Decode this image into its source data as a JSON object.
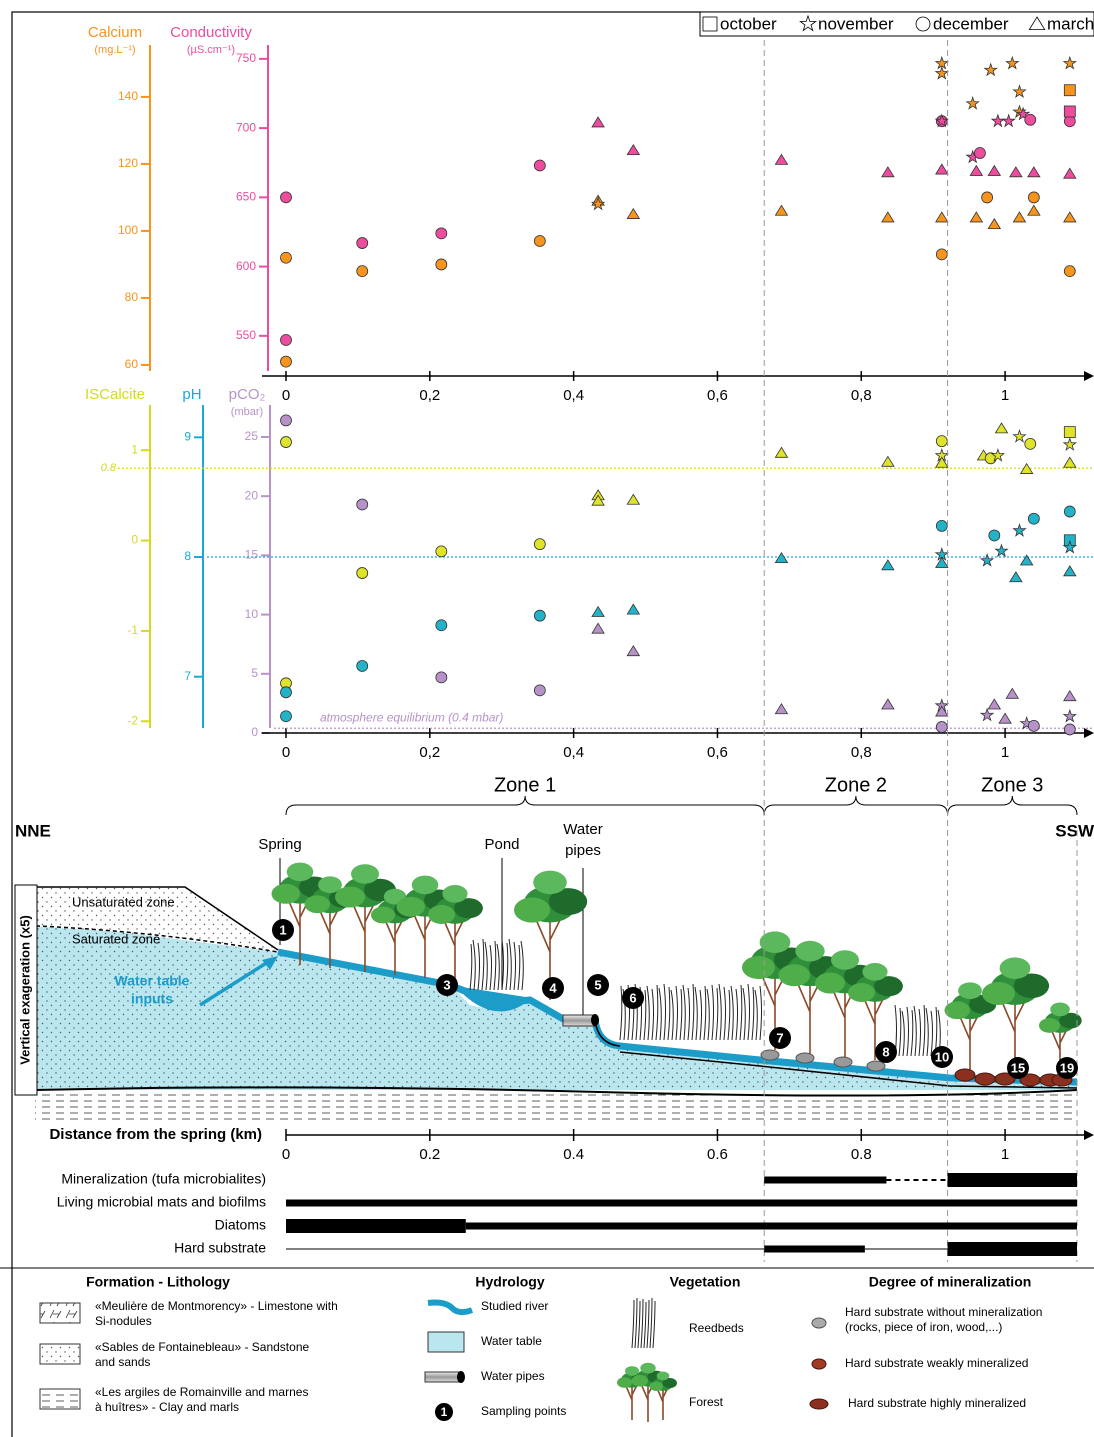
{
  "legend": {
    "months": [
      "october",
      "november",
      "december",
      "march"
    ]
  },
  "chart_data": [
    {
      "type": "scatter",
      "xlim": [
        0,
        1.1
      ],
      "xticks": [
        0,
        {
          "value": 0.2,
          "label": "0,2"
        },
        {
          "value": 0.4,
          "label": "0,4"
        },
        {
          "value": 0.6,
          "label": "0,6"
        },
        {
          "value": 0.8,
          "label": "0,8"
        },
        1
      ],
      "axes": [
        {
          "title": "Calcium",
          "unit": "(mg.L⁻¹)",
          "color": "#f7941d",
          "lim": [
            56.7,
            155.5
          ],
          "ticks": [
            60,
            80,
            100,
            120,
            140
          ]
        },
        {
          "title": "Conductivity",
          "unit": "(µS.cm⁻¹)",
          "color": "#ee4d9f",
          "lim": [
            521,
            760
          ],
          "ticks": [
            550,
            600,
            650,
            700,
            750
          ]
        }
      ],
      "series": [
        {
          "axis": 0,
          "color": "#f7941d",
          "x": [
            0,
            0,
            0.106,
            0.216,
            0.353,
            0.434,
            0.434,
            0.483,
            0.689,
            0.837,
            0.912,
            0.912,
            0.912,
            0.912,
            0.955,
            0.98,
            1.01,
            1.02,
            1.02,
            0.975,
            1.04,
            0.96,
            0.985,
            1.02,
            1.04,
            1.09,
            1.09,
            1.09,
            1.09
          ],
          "values": [
            92,
            61,
            88,
            90,
            97,
            109,
            108,
            105,
            106,
            104,
            150,
            147,
            104,
            93,
            138,
            148,
            150,
            141.5,
            135.5,
            110,
            110,
            104,
            102,
            104,
            106,
            150,
            142,
            104,
            88
          ],
          "months": [
            2,
            2,
            2,
            2,
            2,
            3,
            1,
            3,
            3,
            3,
            1,
            1,
            3,
            2,
            1,
            1,
            1,
            1,
            1,
            2,
            2,
            3,
            3,
            3,
            3,
            1,
            0,
            3,
            2
          ]
        },
        {
          "axis": 1,
          "color": "#ee4d9f",
          "x": [
            0,
            0,
            0.106,
            0.216,
            0.353,
            0.434,
            0.483,
            0.689,
            0.837,
            0.912,
            0.912,
            0.912,
            0.955,
            0.965,
            0.96,
            0.985,
            0.99,
            1.005,
            1.015,
            1.025,
            1.035,
            1.04,
            1.09,
            1.09,
            1.09
          ],
          "values": [
            650,
            547,
            617,
            624,
            673,
            704,
            684,
            677,
            668,
            670,
            705,
            705,
            679,
            682,
            669,
            669,
            705,
            705,
            668,
            710,
            706,
            668,
            705,
            712,
            667
          ],
          "months": [
            2,
            2,
            2,
            2,
            2,
            3,
            3,
            3,
            3,
            3,
            2,
            1,
            1,
            2,
            3,
            3,
            1,
            1,
            3,
            1,
            2,
            3,
            2,
            0,
            3
          ]
        }
      ]
    },
    {
      "type": "scatter",
      "xlim": [
        0,
        1.1
      ],
      "xticks": [
        0,
        {
          "value": 0.2,
          "label": "0,2"
        },
        {
          "value": 0.4,
          "label": "0,4"
        },
        {
          "value": 0.6,
          "label": "0,6"
        },
        {
          "value": 0.8,
          "label": "0,8"
        },
        1
      ],
      "axes": [
        {
          "title": "ISCalcite",
          "color": "#d4da22",
          "lim": [
            -2.13,
            1.5
          ],
          "ticks": [
            -2,
            -1,
            0,
            1
          ]
        },
        {
          "title": "pH",
          "color": "#1aa9d6",
          "lim": [
            6.53,
            9.27
          ],
          "ticks": [
            7,
            8,
            9
          ]
        },
        {
          "title": "pCO₂",
          "unit": "(mbar)",
          "color": "#b792c9",
          "lim": [
            0,
            27.7
          ],
          "ticks": [
            0,
            5,
            10,
            15,
            20,
            25
          ]
        }
      ],
      "reference_lines": [
        {
          "axis": 0,
          "value": 0.8,
          "label": "0.8"
        },
        {
          "axis": 1,
          "value": 8
        },
        {
          "axis": 2,
          "value": 0.4,
          "label": "atmosphere equilibrium (0.4 mbar)"
        }
      ],
      "series": [
        {
          "axis": 0,
          "color": "#dfe32a",
          "x": [
            0,
            0,
            0.106,
            0.216,
            0.353,
            0.434,
            0.434,
            0.483,
            0.689,
            0.837,
            0.912,
            0.912,
            0.912,
            0.97,
            0.98,
            0.99,
            0.995,
            1.02,
            1.035,
            1.03,
            1.09,
            1.09,
            1.09
          ],
          "values": [
            1.09,
            -1.58,
            -0.36,
            -0.12,
            -0.04,
            0.5,
            0.44,
            0.45,
            0.97,
            0.87,
            1.1,
            0.94,
            0.86,
            0.94,
            0.91,
            0.94,
            1.24,
            1.15,
            1.07,
            0.79,
            1.2,
            1.06,
            0.86
          ],
          "months": [
            2,
            2,
            2,
            2,
            2,
            3,
            3,
            3,
            3,
            3,
            2,
            1,
            3,
            3,
            2,
            1,
            3,
            1,
            2,
            3,
            0,
            1,
            3
          ]
        },
        {
          "axis": 1,
          "color": "#22b3c9",
          "x": [
            0,
            0,
            0.106,
            0.216,
            0.353,
            0.434,
            0.483,
            0.689,
            0.837,
            0.912,
            0.912,
            0.912,
            0.975,
            0.985,
            0.995,
            1.02,
            1.04,
            1.015,
            1.03,
            1.09,
            1.09,
            1.09,
            1.09
          ],
          "values": [
            6.87,
            6.67,
            7.09,
            7.43,
            7.51,
            7.54,
            7.56,
            7.99,
            7.93,
            8.26,
            8.02,
            7.95,
            7.97,
            8.18,
            8.05,
            8.22,
            8.32,
            7.83,
            7.97,
            8.38,
            8.14,
            8.08,
            7.88
          ],
          "months": [
            2,
            2,
            2,
            2,
            2,
            3,
            3,
            3,
            3,
            2,
            1,
            3,
            1,
            2,
            1,
            1,
            2,
            3,
            3,
            2,
            0,
            1,
            3
          ]
        },
        {
          "axis": 2,
          "color": "#b792c9",
          "x": [
            0,
            0.106,
            0.216,
            0.353,
            0.434,
            0.483,
            0.689,
            0.837,
            0.912,
            0.912,
            0.912,
            0.975,
            0.985,
            1.0,
            1.01,
            1.03,
            1.04,
            1.09,
            1.09,
            1.09
          ],
          "values": [
            26.4,
            19.3,
            4.7,
            3.6,
            8.8,
            6.9,
            2.0,
            2.4,
            2.3,
            1.8,
            0.5,
            1.5,
            2.4,
            1.2,
            3.3,
            0.8,
            0.6,
            3.1,
            1.4,
            0.3
          ],
          "months": [
            2,
            2,
            2,
            2,
            3,
            3,
            3,
            3,
            1,
            3,
            2,
            1,
            3,
            3,
            3,
            1,
            2,
            3,
            1,
            2
          ]
        }
      ]
    }
  ],
  "profile": {
    "zones": [
      {
        "label": "Zone 1",
        "from": 0,
        "to": 0.665
      },
      {
        "label": "Zone 2",
        "from": 0.665,
        "to": 0.92
      },
      {
        "label": "Zone 3",
        "from": 0.92,
        "to": 1.1
      }
    ],
    "ends": [
      "NNE",
      "SSW"
    ],
    "spring": "Spring",
    "pond": "Pond",
    "pipes": [
      "Water",
      "pipes"
    ],
    "unsaturated": "Unsaturated zone",
    "saturated": "Saturated zone",
    "inputs": [
      "Water table",
      "inputs"
    ],
    "exaggeration": "Vertical exageration (x5)",
    "sampling_points": [
      "1",
      "3",
      "4",
      "5",
      "6",
      "7",
      "8",
      "10",
      "15",
      "19"
    ],
    "distance_axis": {
      "title": "Distance from the spring (km)",
      "lim": [
        0,
        1.1
      ],
      "ticks": [
        0,
        0.2,
        0.4,
        0.6,
        0.8,
        1
      ]
    },
    "indicators": [
      {
        "label": "Mineralization (tufa microbialites)",
        "medium": [
          [
            0.665,
            0.835
          ]
        ],
        "dashed": [
          [
            0.835,
            0.92
          ]
        ],
        "thick": [
          [
            0.92,
            1.1
          ]
        ]
      },
      {
        "label": "Living microbial mats and biofilms",
        "medium": [
          [
            0,
            1.1
          ]
        ]
      },
      {
        "label": "Diatoms",
        "thick": [
          [
            0,
            0.25
          ]
        ],
        "medium": [
          [
            0.25,
            1.1
          ]
        ]
      },
      {
        "label": "Hard substrate",
        "thin": [
          [
            0,
            0.665
          ],
          [
            0.805,
            0.92
          ]
        ],
        "medium": [
          [
            0.665,
            0.805
          ]
        ],
        "thick": [
          [
            0.92,
            1.1
          ]
        ]
      }
    ]
  },
  "legend_panel": {
    "lithology": {
      "title": "Formation - Lithology",
      "items": [
        [
          "«Meulière de Montmorency» - Limestone with",
          "Si-nodules"
        ],
        [
          "«Sables de Fontainebleau» - Sandstone",
          "and sands"
        ],
        [
          "«Les argiles de Romainville and marnes",
          "à huîtres» - Clay and marls"
        ]
      ]
    },
    "hydrology": {
      "title": "Hydrology",
      "items": [
        "Studied river",
        "Water table",
        "Water pipes",
        "Sampling points"
      ]
    },
    "vegetation": {
      "title": "Vegetation",
      "items": [
        "Reedbeds",
        "Forest"
      ]
    },
    "mineralization": {
      "title": "Degree of mineralization",
      "items": [
        [
          "Hard substrate without mineralization",
          "(rocks, piece of iron, wood,...)"
        ],
        [
          "Hard substrate weakly mineralized"
        ],
        [
          "Hard substrate highly mineralized"
        ]
      ]
    }
  }
}
